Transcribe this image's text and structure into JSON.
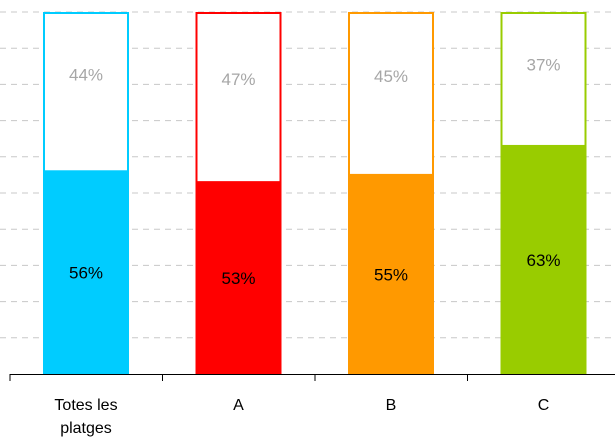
{
  "chart_data": {
    "type": "bar",
    "stacked": true,
    "normalized_100": true,
    "categories": [
      [
        "Totes les",
        "platges"
      ],
      [
        "A"
      ],
      [
        "B"
      ],
      [
        "C"
      ]
    ],
    "series": [
      {
        "values": [
          56,
          53,
          55,
          63
        ],
        "labels": [
          "56%",
          "53%",
          "55%",
          "63%"
        ],
        "colors": [
          "#00CCFF",
          "#FF0000",
          "#FF9900",
          "#99CC00"
        ],
        "style": "filled"
      },
      {
        "values": [
          44,
          47,
          45,
          37
        ],
        "labels": [
          "44%",
          "47%",
          "45%",
          "37%"
        ],
        "colors": [
          "#00CCFF",
          "#FF0000",
          "#FF9900",
          "#99CC00"
        ],
        "style": "outline"
      }
    ],
    "ylim": [
      0,
      100
    ],
    "grid": true,
    "grid_style": "dashed",
    "legend": "none",
    "title": "",
    "xlabel": "",
    "ylabel": "",
    "label_colors": {
      "filled": "#000000",
      "outline": "#A6A6A6"
    },
    "grid_color": "#C8C8C8",
    "axis_color": "#000000"
  }
}
